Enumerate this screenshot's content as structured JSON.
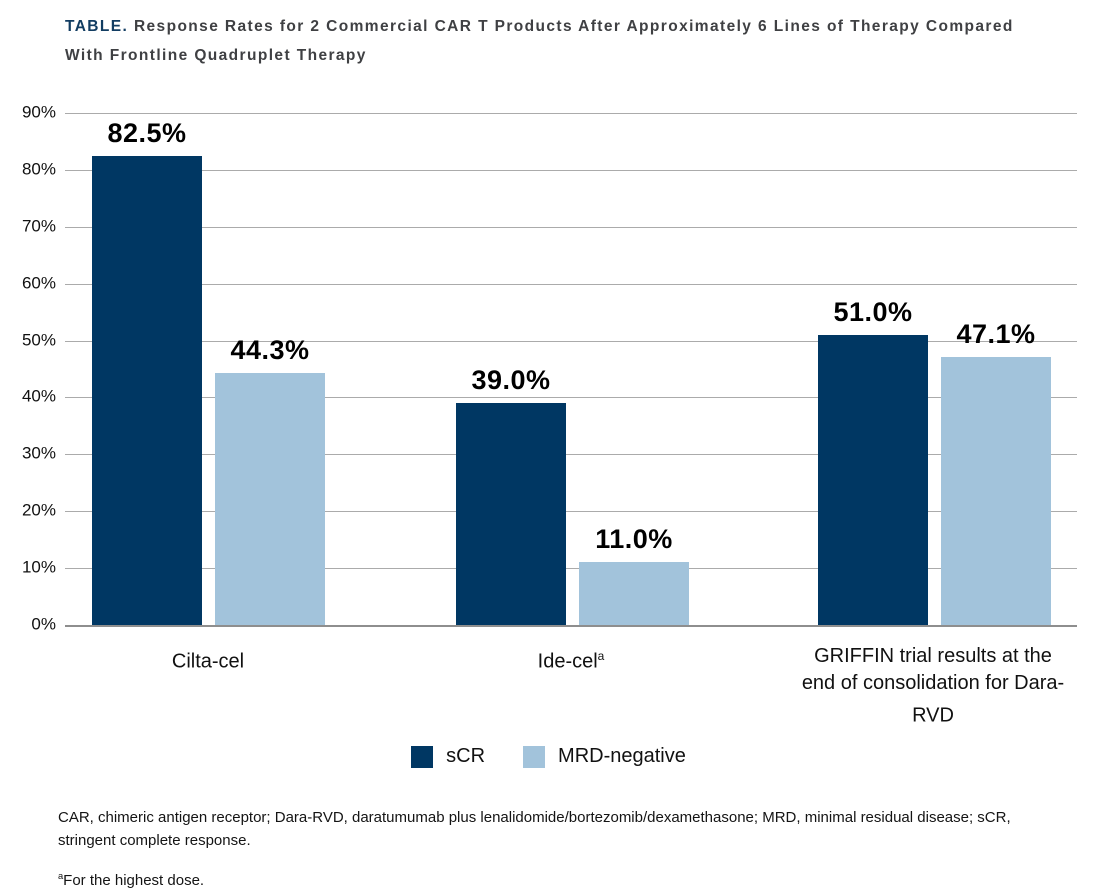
{
  "title": {
    "tag": "TABLE.",
    "text": "Response Rates for 2 Commercial CAR T Products After Approximately 6 Lines of Therapy Compared With Frontline Quadruplet Therapy"
  },
  "chart_data": {
    "type": "bar",
    "title": "Response Rates for 2 Commercial CAR T Products After Approximately 6 Lines of Therapy Compared With Frontline Quadruplet Therapy",
    "categories": [
      "Cilta-cel",
      "Ide-cel",
      "GRIFFIN trial results at the end of consolidation for Dara-RVD"
    ],
    "category_superscripts": [
      "",
      "a",
      ""
    ],
    "series": [
      {
        "name": "sCR",
        "color": "#003763",
        "values": [
          82.5,
          39.0,
          51.0
        ]
      },
      {
        "name": "MRD-negative",
        "color": "#A2C3DB",
        "values": [
          44.3,
          11.0,
          47.1
        ]
      }
    ],
    "value_labels": [
      [
        "82.5%",
        "39.0%",
        "51.0%"
      ],
      [
        "44.3%",
        "11.0%",
        "47.1%"
      ]
    ],
    "xlabel": "",
    "ylabel": "",
    "ylim": [
      0,
      90
    ],
    "yticks": [
      "90%",
      "80%",
      "70%",
      "60%",
      "50%",
      "40%",
      "30%",
      "20%",
      "10%",
      "0%"
    ],
    "grid": true,
    "legend_position": "bottom"
  },
  "footnotes": {
    "abbreviations": "CAR, chimeric antigen receptor; Dara-RVD, daratumumab plus lenalidomide/bortezomib/dexamethasone; MRD, minimal residual disease; sCR, stringent complete response.",
    "dose_sup": "a",
    "dose_text": "For the highest dose."
  }
}
